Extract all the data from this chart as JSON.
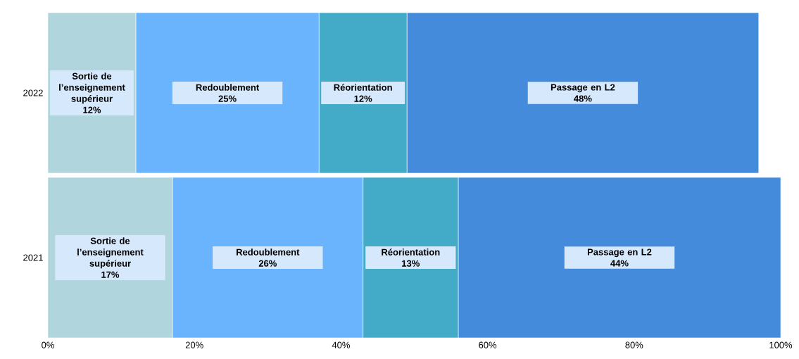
{
  "chart_data": {
    "type": "bar",
    "orientation": "horizontal",
    "stacked": true,
    "categories": [
      "2022",
      "2021"
    ],
    "series": [
      {
        "name": "Sortie de l’enseignement supérieur",
        "color": "#b0d5dd",
        "values": [
          12,
          17
        ],
        "value_labels": [
          "12%",
          "17%"
        ]
      },
      {
        "name": "Redoublement",
        "color": "#6ab3fd",
        "values": [
          25,
          26
        ],
        "value_labels": [
          "25%",
          "26%"
        ]
      },
      {
        "name": "Réorientation",
        "color": "#43abc7",
        "values": [
          12,
          13
        ],
        "value_labels": [
          "12%",
          "13%"
        ]
      },
      {
        "name": "Passage en L2",
        "color": "#448bdb",
        "values": [
          48,
          44
        ],
        "value_labels": [
          "48%",
          "44%"
        ]
      }
    ],
    "xlim": [
      0,
      100
    ],
    "xticks": [
      {
        "value": 0,
        "label": "0%"
      },
      {
        "value": 20,
        "label": "20%"
      },
      {
        "value": 40,
        "label": "40%"
      },
      {
        "value": 60,
        "label": "60%"
      },
      {
        "value": 80,
        "label": "80%"
      },
      {
        "value": 100,
        "label": "100%"
      }
    ],
    "grid": false,
    "legend": false
  }
}
